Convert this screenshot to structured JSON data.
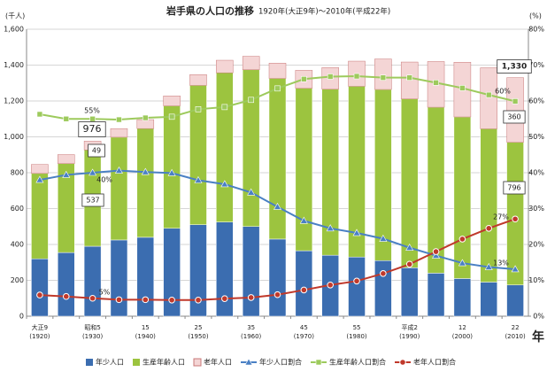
{
  "chart_data": {
    "type": "bar",
    "stacked": true,
    "title": "岩手県の人口の推移",
    "subtitle": "1920年(大正9年)～2010年(平成22年)",
    "y_label": "(千人)",
    "y2_label": "(%)",
    "x_label": "年",
    "categories": [
      "大正9\n(1920)",
      null,
      "昭和5\n(1930)",
      null,
      "15\n(1940)",
      null,
      "25\n(1950)",
      null,
      "35\n(1960)",
      null,
      "45\n(1970)",
      null,
      "55\n(1980)",
      null,
      "平成2\n(1990)",
      null,
      "12\n(2000)",
      null,
      "22\n(2010)"
    ],
    "series": [
      {
        "name": "年少人口",
        "type": "bar",
        "color": "#3b6db0",
        "values": [
          320,
          355,
          390,
          425,
          440,
          490,
          510,
          525,
          500,
          430,
          365,
          340,
          330,
          310,
          270,
          240,
          210,
          190,
          174
        ]
      },
      {
        "name": "生産年齢人口",
        "type": "bar",
        "color": "#9cc43f",
        "values": [
          476,
          496,
          537,
          573,
          606,
          683,
          777,
          832,
          874,
          896,
          906,
          926,
          952,
          954,
          942,
          925,
          901,
          855,
          796
        ]
      },
      {
        "name": "老年人口",
        "type": "bar",
        "color": "#f4d5d5",
        "values": [
          50,
          50,
          49,
          48,
          50,
          55,
          60,
          70,
          75,
          85,
          100,
          120,
          140,
          170,
          205,
          255,
          305,
          340,
          360
        ]
      },
      {
        "name": "年少人口割合",
        "type": "line",
        "axis": "y2",
        "marker": "triangle",
        "color": "#4a80c4",
        "values": [
          38,
          39.4,
          40,
          40.6,
          40.2,
          39.9,
          37.9,
          36.8,
          34.5,
          30.5,
          26.6,
          24.5,
          23.2,
          21.6,
          19.1,
          16.9,
          14.8,
          13.7,
          13.1
        ]
      },
      {
        "name": "生産年齢人口割合",
        "type": "line",
        "axis": "y2",
        "marker": "square",
        "color": "#9dca5c",
        "values": [
          56.3,
          55,
          55,
          54.8,
          55.3,
          55.6,
          57.7,
          58.3,
          60.3,
          63.5,
          66.1,
          66.8,
          66.9,
          66.5,
          66.5,
          65.1,
          63.6,
          61.7,
          59.9
        ]
      },
      {
        "name": "老年人口割合",
        "type": "line",
        "axis": "y2",
        "marker": "circle",
        "color": "#c0392b",
        "values": [
          5.9,
          5.5,
          5,
          4.6,
          4.6,
          4.5,
          4.5,
          4.9,
          5.2,
          6,
          7.3,
          8.7,
          9.8,
          11.9,
          14.5,
          18,
          21.5,
          24.5,
          27.1
        ]
      }
    ],
    "ylim": [
      0,
      1600
    ],
    "yticks": [
      0,
      200,
      400,
      600,
      800,
      {
        "value": 1000,
        "label": "1,000"
      },
      {
        "value": 1200,
        "label": "1,200"
      },
      {
        "value": 1400,
        "label": "1,400"
      },
      {
        "value": 1600,
        "label": "1,600"
      }
    ],
    "y2lim": [
      0,
      80
    ],
    "y2ticks": [
      {
        "value": 0,
        "label": "0%"
      },
      {
        "value": 10,
        "label": "10%"
      },
      {
        "value": 20,
        "label": "20%"
      },
      {
        "value": 30,
        "label": "30%"
      },
      {
        "value": 40,
        "label": "40%"
      },
      {
        "value": 50,
        "label": "50%"
      },
      {
        "value": 60,
        "label": "60%"
      },
      {
        "value": 70,
        "label": "70%"
      },
      {
        "value": 80,
        "label": "80%"
      }
    ],
    "grid": true,
    "legend": "bottom",
    "annotations": [
      "976",
      "49",
      "537",
      "55%",
      "40%",
      "5%",
      "1,330",
      "360",
      "796",
      "60%",
      "27%",
      "13%"
    ]
  }
}
